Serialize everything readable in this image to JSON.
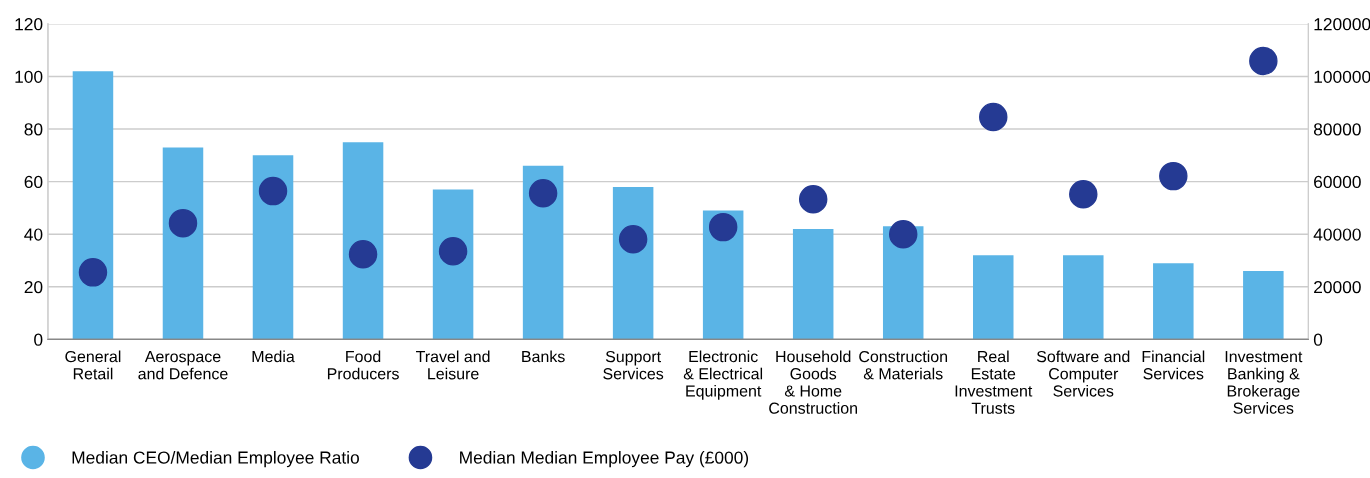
{
  "chart_data": {
    "type": "bar",
    "categories": [
      "General\nRetail",
      "Aerospace\nand Defence",
      "Media",
      "Food\nProducers",
      "Travel and\nLeisure",
      "Banks",
      "Support\nServices",
      "Electronic\n& Electrical\nEquipment",
      "Household\nGoods\n& Home\nConstruction",
      "Construction\n& Materials",
      "Real\nEstate\nInvestment\nTrusts",
      "Software and\nComputer\nServices",
      "Financial\nServices",
      "Investment\nBanking &\nBrokerage\nServices"
    ],
    "series": [
      {
        "name": "Median CEO/Median Employee Ratio",
        "color": "#5ab4e6",
        "values": [
          102,
          73,
          70,
          75,
          57,
          66,
          58,
          49,
          42,
          43,
          32,
          32,
          29,
          26
        ]
      },
      {
        "name": "Median Median Employee Pay (£000)",
        "type": "scatter",
        "axis": "y2",
        "color": "#253a93",
        "values": [
          25500,
          44200,
          56400,
          32400,
          33500,
          55600,
          38100,
          42700,
          53300,
          40000,
          84600,
          55200,
          62100,
          105900
        ]
      }
    ],
    "ylim": [
      0,
      120
    ],
    "yticks": [
      0,
      20,
      40,
      60,
      80,
      100,
      120
    ],
    "y2lim": [
      0,
      120000
    ],
    "y2ticks": [
      0,
      20000,
      40000,
      60000,
      80000,
      100000,
      120000
    ],
    "grid": "y",
    "legend": "bottom left",
    "marker": "circle"
  }
}
